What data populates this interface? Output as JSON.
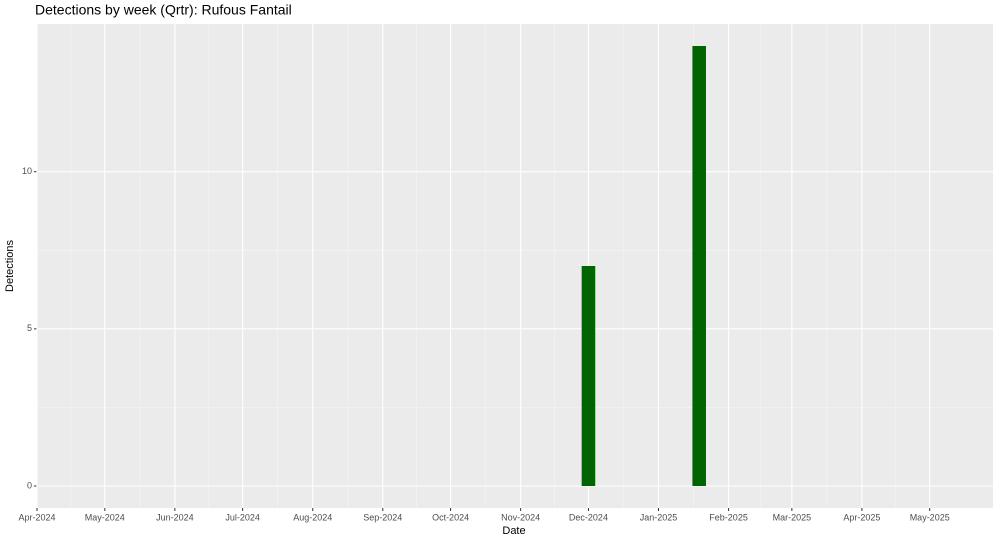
{
  "chart_data": {
    "type": "bar",
    "title": "Detections by week (Qrtr): Rufous Fantail",
    "x_label": "Date",
    "y_label": "Detections",
    "x": [
      "2024-12-01",
      "2025-01-19"
    ],
    "values": [
      7,
      14
    ],
    "color": "#006400",
    "xlim": [
      "2024-04-01",
      "2025-05-29"
    ],
    "xticks": [
      {
        "value": "2024-04-01",
        "label": "Apr-2024"
      },
      {
        "value": "2024-05-01",
        "label": "May-2024"
      },
      {
        "value": "2024-06-01",
        "label": "Jun-2024"
      },
      {
        "value": "2024-07-01",
        "label": "Jul-2024"
      },
      {
        "value": "2024-08-01",
        "label": "Aug-2024"
      },
      {
        "value": "2024-09-01",
        "label": "Sep-2024"
      },
      {
        "value": "2024-10-01",
        "label": "Oct-2024"
      },
      {
        "value": "2024-11-01",
        "label": "Nov-2024"
      },
      {
        "value": "2024-12-01",
        "label": "Dec-2024"
      },
      {
        "value": "2025-01-01",
        "label": "Jan-2025"
      },
      {
        "value": "2025-02-01",
        "label": "Feb-2025"
      },
      {
        "value": "2025-03-01",
        "label": "Mar-2025"
      },
      {
        "value": "2025-04-01",
        "label": "Apr-2025"
      },
      {
        "value": "2025-05-01",
        "label": "May-2025"
      }
    ],
    "ylim": [
      -0.7,
      14.7
    ],
    "yticks": [
      0,
      5,
      10
    ],
    "grid": true
  }
}
